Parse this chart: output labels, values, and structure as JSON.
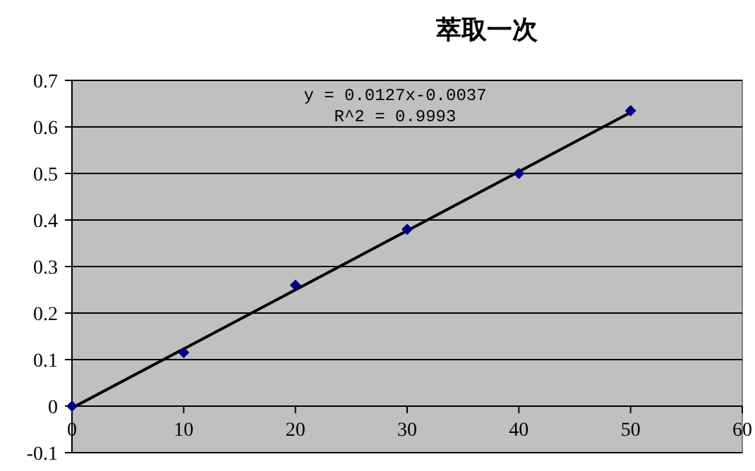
{
  "chart_data": {
    "type": "scatter",
    "title": "萃取一次",
    "series": [
      {
        "type": "scatter",
        "color": "#000080",
        "marker": "diamond",
        "x": [
          0,
          10,
          20,
          30,
          40,
          50
        ],
        "values": [
          0,
          0.115,
          0.26,
          0.38,
          0.5,
          0.635
        ]
      },
      {
        "type": "line",
        "color": "#000000",
        "marker": "none",
        "line_style": "solid",
        "x": [
          0,
          50
        ],
        "values": [
          -0.004,
          0.631
        ]
      }
    ],
    "xlim": [
      0,
      60
    ],
    "xticks": [
      0,
      10,
      20,
      30,
      40,
      50,
      60
    ],
    "ylim": [
      -0.1,
      0.7
    ],
    "yticks": [
      -0.1,
      0,
      0.1,
      0.2,
      0.3,
      0.4,
      0.5,
      0.6,
      0.7
    ],
    "grid": "y",
    "annotations": [
      "y = 0.0127x-0.0037",
      "R^2 = 0.9993"
    ]
  }
}
